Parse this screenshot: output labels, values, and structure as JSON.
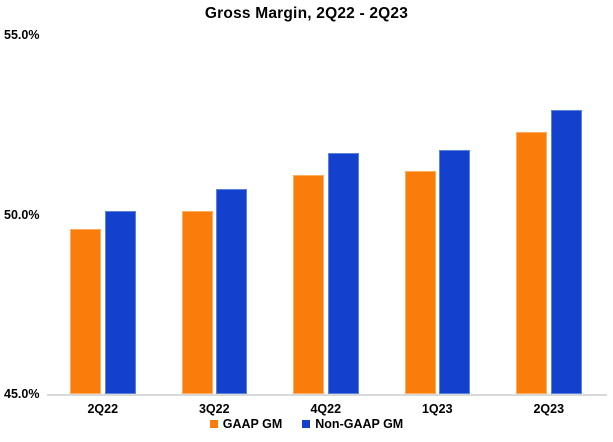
{
  "chart_data": {
    "type": "bar",
    "title": "Gross Margin, 2Q22 - 2Q23",
    "categories": [
      "2Q22",
      "3Q22",
      "4Q22",
      "1Q23",
      "2Q23"
    ],
    "series": [
      {
        "name": "GAAP GM",
        "color": "#FA7D0B",
        "border_color": "#FCAD60",
        "values": [
          49.6,
          50.1,
          51.1,
          51.2,
          52.3
        ]
      },
      {
        "name": "Non-GAAP GM",
        "color": "#1341CE",
        "border_color": "#5E82DC",
        "values": [
          50.1,
          50.7,
          51.7,
          51.8,
          52.9
        ]
      }
    ],
    "ylabel": "",
    "xlabel": "",
    "ylim": [
      45,
      55
    ],
    "yticks": [
      {
        "label": "55.0%",
        "value": 55
      },
      {
        "label": "50.0%",
        "value": 50
      },
      {
        "label": "45.0%",
        "value": 45
      }
    ],
    "grid": false,
    "legend_position": "bottom",
    "axis_line_color": "#D9D9D9",
    "background_color": "#FFFFFF",
    "text_color": "#000000"
  }
}
